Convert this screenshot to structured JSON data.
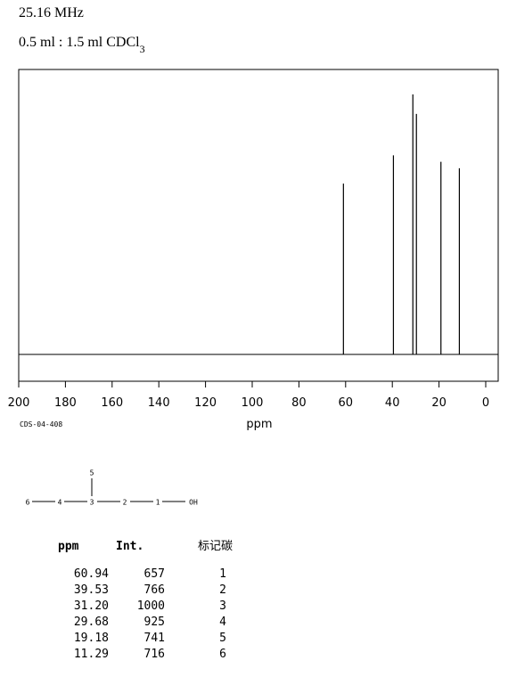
{
  "header": {
    "frequency": "25.16 MHz",
    "solvent": "0.5 ml : 1.5 ml CDCl",
    "solvent_subscript": "3"
  },
  "chart_data": {
    "type": "stick",
    "x": [
      60.94,
      39.53,
      31.2,
      29.68,
      19.18,
      11.29
    ],
    "values": [
      657,
      766,
      1000,
      925,
      741,
      716
    ],
    "color": "#000000",
    "xlim": [
      200,
      0
    ],
    "xticks": [
      200,
      180,
      160,
      140,
      120,
      100,
      80,
      60,
      40,
      20,
      0
    ],
    "ylim": [
      -103,
      1096
    ],
    "x_label": "ppm",
    "note": "CDS-04-408"
  },
  "structure": {
    "labels": [
      "6",
      "4",
      "3",
      "2",
      "1",
      "OH",
      "5"
    ]
  },
  "table": {
    "headers": [
      "ppm",
      "Int.",
      "标记碳"
    ],
    "rows": [
      [
        "60.94",
        "657",
        "1"
      ],
      [
        "39.53",
        "766",
        "2"
      ],
      [
        "31.20",
        "1000",
        "3"
      ],
      [
        "29.68",
        "925",
        "4"
      ],
      [
        "19.18",
        "741",
        "5"
      ],
      [
        "11.29",
        "716",
        "6"
      ]
    ]
  }
}
